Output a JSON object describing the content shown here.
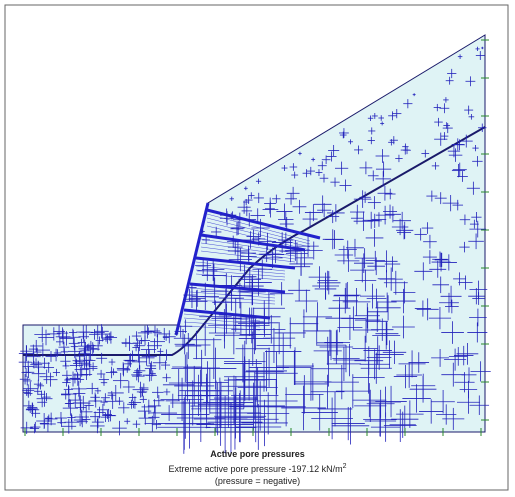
{
  "caption": {
    "title": "Active pore pressures",
    "extreme": "Extreme active pore pressure -197.12 kN/m",
    "extreme_power": "2",
    "note": "(pressure = negative)"
  }
}
